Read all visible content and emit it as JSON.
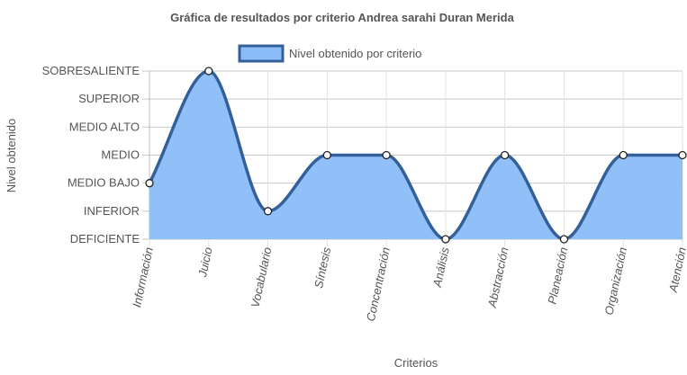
{
  "chart_data": {
    "type": "area",
    "title": "Gráfica de resultados por criterio Andrea sarahi Duran Merida",
    "xlabel": "Criterios",
    "ylabel": "Nivel obtenido",
    "legend_position": "top",
    "grid": true,
    "y_levels": [
      "DEFICIENTE",
      "INFERIOR",
      "MEDIO BAJO",
      "MEDIO",
      "MEDIO ALTO",
      "SUPERIOR",
      "SOBRESALIENTE"
    ],
    "ylim": [
      0,
      6
    ],
    "categories": [
      "Información",
      "Juicio",
      "Vocabulario",
      "Síntesis",
      "Concentración",
      "Análisis",
      "Abstracción",
      "Planeación",
      "Organización",
      "Atención"
    ],
    "series": [
      {
        "name": "Nivel obtenido por criterio",
        "values": [
          2,
          6,
          1,
          3,
          3,
          0,
          3,
          0,
          3,
          3
        ],
        "fill_color": "#8bbcf7",
        "line_color": "#34609a"
      }
    ]
  }
}
